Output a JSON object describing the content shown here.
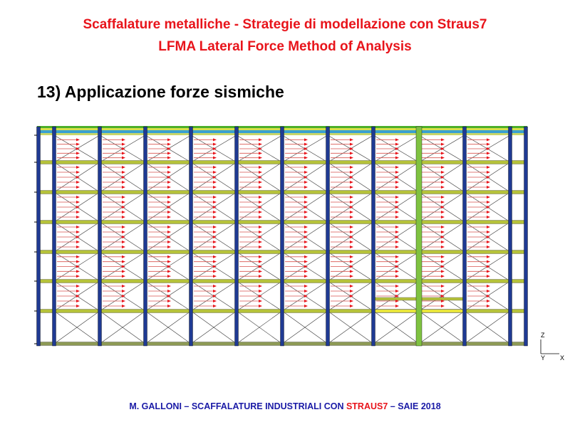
{
  "slide": {
    "title_line1": "Scaffalature metalliche - Strategie di modellazione con Straus7",
    "title_line2": "LFMA Lateral Force Method of Analysis",
    "heading": "13) Applicazione forze sismiche"
  },
  "footer": {
    "part1": "M. GALLONI – SCAFFALATURE INDUSTRIALI  CON ",
    "highlight": "STRAUS7",
    "part2": " – SAIE 2018"
  },
  "axes": {
    "z": "Z",
    "y": "Y",
    "x": "X"
  },
  "colors": {
    "title": "#e8141b",
    "footer": "#1a1aa6",
    "column": "#1f3a93",
    "beam": "#b5c23a",
    "force_arrow": "#e8141b",
    "special_column": "#7fc241"
  }
}
